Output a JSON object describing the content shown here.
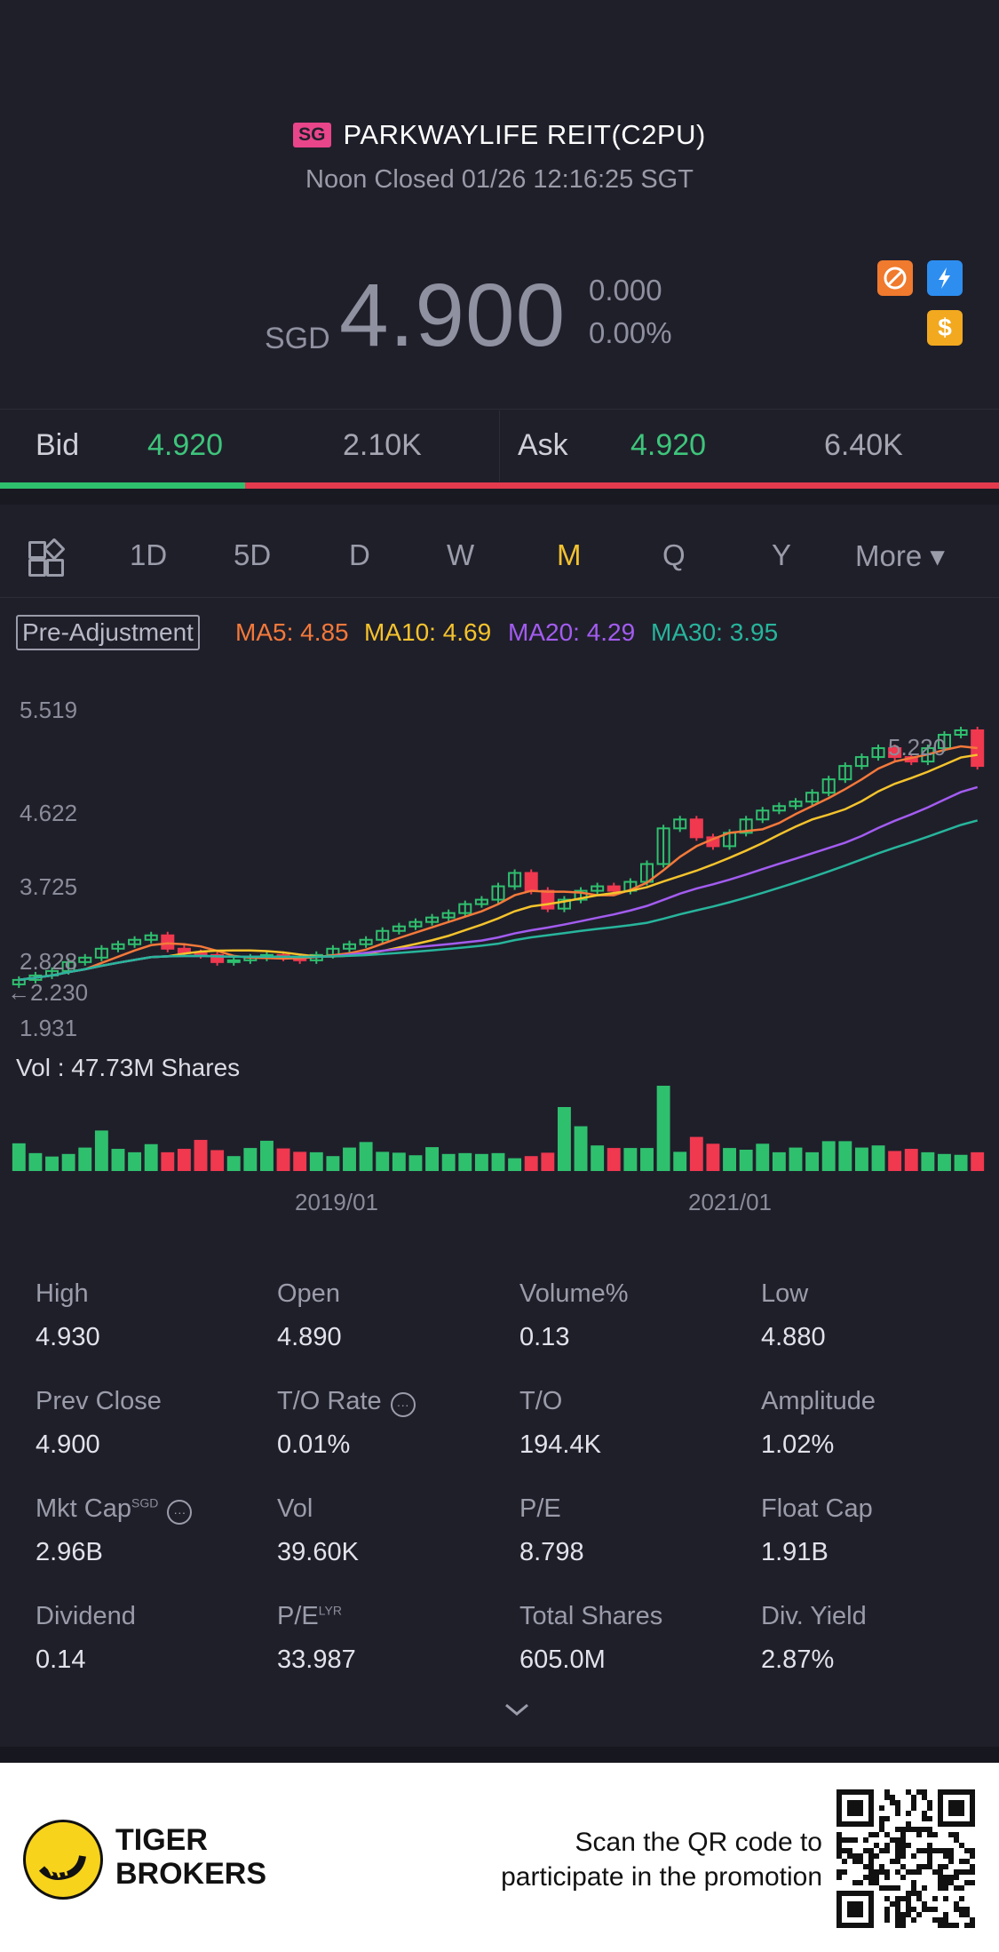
{
  "header": {
    "market_badge": "SG",
    "title": "PARKWAYLIFE REIT(C2PU)",
    "status": "Noon Closed 01/26 12:16:25 SGT",
    "currency": "SGD",
    "price": "4.900",
    "change": "0.000",
    "change_pct": "0.00%",
    "icons": [
      "no-short-icon",
      "lightning-icon",
      "dollar-icon"
    ],
    "colors": {
      "muted": "#8f90a0",
      "badge": "#e8458b"
    }
  },
  "bidask": {
    "bid_label": "Bid",
    "bid_price": "4.920",
    "bid_size": "2.10K",
    "ask_label": "Ask",
    "ask_price": "4.920",
    "ask_size": "6.40K",
    "bid_ratio": 0.245
  },
  "tabs": {
    "items": [
      "1D",
      "5D",
      "D",
      "W",
      "M",
      "Q",
      "Y",
      "More ▾"
    ],
    "active": "M"
  },
  "indicators": {
    "adjustment_label": "Pre-Adjustment",
    "ma5": "MA5: 4.85",
    "ma10": "MA10: 4.69",
    "ma20": "MA20: 4.29",
    "ma30": "MA30: 3.95",
    "colors": {
      "ma5": "#f4793a",
      "ma10": "#f5c32c",
      "ma20": "#a35cf0",
      "ma30": "#27b59c",
      "up": "#2fc06e",
      "down": "#f0384f"
    }
  },
  "chart_data": {
    "type": "candlestick",
    "period": "monthly",
    "y_tick_labels": [
      "5.519",
      "4.622",
      "3.725",
      "2.828",
      "1.931"
    ],
    "ylim": [
      1.931,
      5.519
    ],
    "x_tick_labels": [
      "2019/01",
      "2021/01"
    ],
    "high_marker": "5.220",
    "low_marker": "2.230",
    "volume_label": "Vol  : 47.73M Shares",
    "close": [
      2.5,
      2.55,
      2.6,
      2.7,
      2.75,
      2.85,
      2.9,
      2.95,
      3.0,
      2.85,
      2.8,
      2.78,
      2.7,
      2.72,
      2.75,
      2.78,
      2.75,
      2.72,
      2.78,
      2.85,
      2.9,
      2.95,
      3.05,
      3.1,
      3.15,
      3.2,
      3.25,
      3.35,
      3.4,
      3.55,
      3.7,
      3.5,
      3.3,
      3.4,
      3.5,
      3.55,
      3.5,
      3.6,
      3.8,
      4.2,
      4.3,
      4.1,
      4.0,
      4.15,
      4.3,
      4.4,
      4.45,
      4.5,
      4.6,
      4.75,
      4.9,
      5.0,
      5.1,
      5.0,
      4.95,
      5.1,
      5.25,
      5.3,
      4.9
    ],
    "volume": [
      0.65,
      0.42,
      0.34,
      0.4,
      0.55,
      0.95,
      0.52,
      0.44,
      0.63,
      0.44,
      0.52,
      0.73,
      0.49,
      0.35,
      0.54,
      0.71,
      0.53,
      0.45,
      0.44,
      0.35,
      0.55,
      0.68,
      0.45,
      0.43,
      0.37,
      0.56,
      0.4,
      0.42,
      0.4,
      0.42,
      0.3,
      0.35,
      0.43,
      1.5,
      1.05,
      0.6,
      0.54,
      0.54,
      0.54,
      2.0,
      0.45,
      0.8,
      0.64,
      0.54,
      0.5,
      0.64,
      0.44,
      0.55,
      0.44,
      0.7,
      0.7,
      0.55,
      0.6,
      0.47,
      0.52,
      0.44,
      0.4,
      0.38,
      0.44
    ]
  },
  "stats": [
    {
      "label": "High",
      "value": "4.930"
    },
    {
      "label": "Open",
      "value": "4.890"
    },
    {
      "label": "Volume%",
      "value": "0.13"
    },
    {
      "label": "Low",
      "value": "4.880"
    },
    {
      "label": "Prev Close",
      "value": "4.900"
    },
    {
      "label": "T/O Rate",
      "value": "0.01%"
    },
    {
      "label": "T/O",
      "value": "194.4K"
    },
    {
      "label": "Amplitude",
      "value": "1.02%"
    },
    {
      "label": "Mkt Cap",
      "value": "2.96B",
      "sup": "SGD"
    },
    {
      "label": "Vol",
      "value": "39.60K"
    },
    {
      "label": "P/E",
      "value": "8.798"
    },
    {
      "label": "Float Cap",
      "value": "1.91B"
    },
    {
      "label": "Dividend",
      "value": "0.14"
    },
    {
      "label": "P/E",
      "value": "33.987",
      "sup": "LYR"
    },
    {
      "label": "Total Shares",
      "value": "605.0M"
    },
    {
      "label": "Div. Yield",
      "value": "2.87%"
    }
  ],
  "footer": {
    "brand_line1": "TIGER",
    "brand_line2": "BROKERS",
    "promo_line1": "Scan the QR code to",
    "promo_line2": "participate in the promotion"
  }
}
